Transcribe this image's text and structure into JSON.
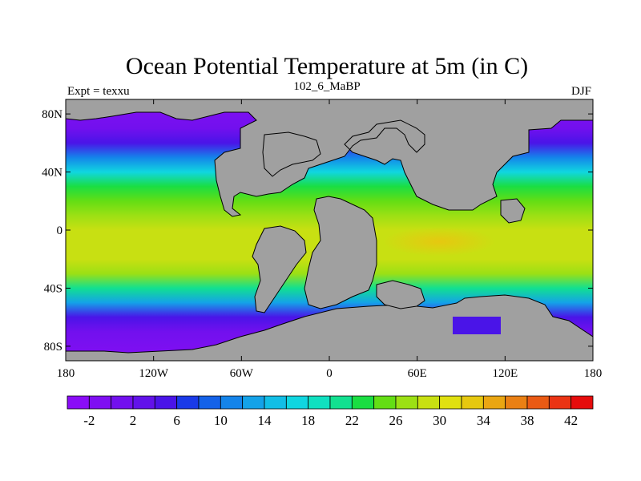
{
  "chart_data": {
    "type": "heatmap",
    "title": "Ocean Potential Temperature at 5m (in C)",
    "left_string": "Expt = texxu",
    "center_string": "102_6_MaBP",
    "right_string": "DJF",
    "xlabel": "",
    "ylabel": "",
    "xlim": [
      -180,
      180
    ],
    "ylim": [
      -90,
      90
    ],
    "x_ticks": [
      {
        "value": -180,
        "label": "180"
      },
      {
        "value": -120,
        "label": "120W"
      },
      {
        "value": -60,
        "label": "60W"
      },
      {
        "value": 0,
        "label": "0"
      },
      {
        "value": 60,
        "label": "60E"
      },
      {
        "value": 120,
        "label": "120E"
      },
      {
        "value": 180,
        "label": "180"
      }
    ],
    "y_ticks": [
      {
        "value": 80,
        "label": "80N"
      },
      {
        "value": 40,
        "label": "40N"
      },
      {
        "value": 0,
        "label": "0"
      },
      {
        "value": -40,
        "label": "40S"
      },
      {
        "value": -80,
        "label": "80S"
      }
    ],
    "colorbar": {
      "levels": [
        -4,
        -2,
        0,
        2,
        4,
        6,
        8,
        10,
        12,
        14,
        16,
        18,
        20,
        22,
        24,
        26,
        28,
        30,
        32,
        34,
        36,
        38,
        40,
        42,
        44
      ],
      "labels": [
        {
          "value": -2,
          "label": "-2"
        },
        {
          "value": 2,
          "label": "2"
        },
        {
          "value": 6,
          "label": "6"
        },
        {
          "value": 10,
          "label": "10"
        },
        {
          "value": 14,
          "label": "14"
        },
        {
          "value": 18,
          "label": "18"
        },
        {
          "value": 22,
          "label": "22"
        },
        {
          "value": 26,
          "label": "26"
        },
        {
          "value": 30,
          "label": "30"
        },
        {
          "value": 34,
          "label": "34"
        },
        {
          "value": 38,
          "label": "38"
        },
        {
          "value": 42,
          "label": "42"
        }
      ],
      "colors": [
        "#8a0cf7",
        "#7f0ff2",
        "#7210ee",
        "#6212ea",
        "#4a14e8",
        "#1a3ae8",
        "#1462e8",
        "#1484ea",
        "#14a2e8",
        "#12bee6",
        "#10d6e0",
        "#10e0c0",
        "#12e090",
        "#1ade42",
        "#64de14",
        "#9ce014",
        "#c8e012",
        "#e0e010",
        "#e6c810",
        "#eaa612",
        "#ea8014",
        "#ea5a14",
        "#ea3414",
        "#e60c0c"
      ]
    },
    "land_color": "#a0a0a0",
    "ocean_field": [
      {
        "lat": 85,
        "value": -2
      },
      {
        "lat": 70,
        "value": 0
      },
      {
        "lat": 60,
        "value": 4
      },
      {
        "lat": 50,
        "value": 10
      },
      {
        "lat": 40,
        "value": 17
      },
      {
        "lat": 30,
        "value": 22
      },
      {
        "lat": 20,
        "value": 25
      },
      {
        "lat": 10,
        "value": 27
      },
      {
        "lat": 0,
        "value": 28
      },
      {
        "lat": -10,
        "value": 29
      },
      {
        "lat": -20,
        "value": 29
      },
      {
        "lat": -30,
        "value": 26
      },
      {
        "lat": -40,
        "value": 21
      },
      {
        "lat": -50,
        "value": 12
      },
      {
        "lat": -60,
        "value": 5
      },
      {
        "lat": -70,
        "value": 0
      },
      {
        "lat": -85,
        "value": -2
      }
    ],
    "hot_spot": {
      "lon": 75,
      "lat": -8,
      "value": 33
    }
  }
}
